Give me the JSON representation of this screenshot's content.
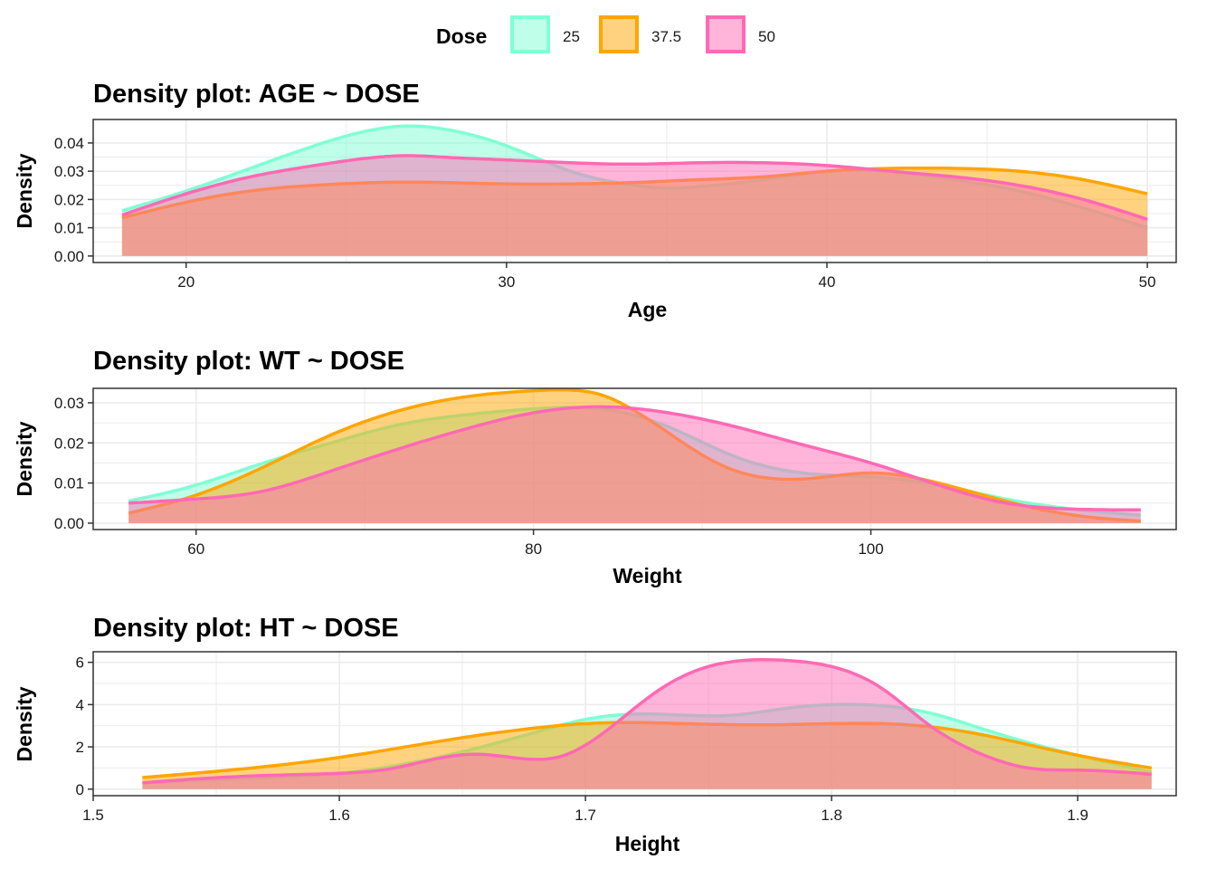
{
  "legend": {
    "title": "Dose",
    "entries": [
      {
        "label": "25",
        "fill": "#7FFFD4",
        "stroke": "#7FFFD4"
      },
      {
        "label": "37.5",
        "fill": "#FFA500",
        "stroke": "#FFA500"
      },
      {
        "label": "50",
        "fill": "#FF69B4",
        "stroke": "#FF69B4"
      }
    ]
  },
  "colors": {
    "25": "#7FFFD4",
    "37.5": "#FFA500",
    "50": "#FF69B4",
    "gridline": "#EBEBEB",
    "panel_border": "#333333"
  },
  "chart_data": [
    {
      "type": "area",
      "title": "Density plot: AGE ~ DOSE",
      "xlabel": "Age",
      "ylabel": "Density",
      "xlim": [
        17.1,
        50.9
      ],
      "ylim": [
        -0.0023,
        0.0483
      ],
      "xticks": [
        20,
        30,
        40,
        50
      ],
      "xtick_labels": [
        "20",
        "30",
        "40",
        "50"
      ],
      "yticks": [
        0,
        0.01,
        0.02,
        0.03,
        0.04
      ],
      "ytick_labels": [
        "0.00",
        "0.01",
        "0.02",
        "0.03",
        "0.04"
      ],
      "grid": true,
      "series": [
        {
          "name": "25",
          "x": [
            18,
            20,
            22,
            24,
            26,
            27,
            28,
            30,
            32,
            34,
            35,
            36,
            38,
            40,
            42,
            44,
            46,
            48,
            50
          ],
          "y": [
            0.016,
            0.023,
            0.031,
            0.039,
            0.045,
            0.046,
            0.045,
            0.039,
            0.03,
            0.025,
            0.024,
            0.0245,
            0.027,
            0.03,
            0.03,
            0.027,
            0.023,
            0.017,
            0.01
          ]
        },
        {
          "name": "37.5",
          "x": [
            18,
            20,
            22,
            24,
            26,
            28,
            30,
            32,
            34,
            36,
            38,
            40,
            42,
            44,
            46,
            48,
            50
          ],
          "y": [
            0.0135,
            0.019,
            0.023,
            0.025,
            0.026,
            0.026,
            0.0255,
            0.0255,
            0.026,
            0.027,
            0.028,
            0.03,
            0.031,
            0.031,
            0.03,
            0.027,
            0.022
          ]
        },
        {
          "name": "50",
          "x": [
            18,
            20,
            22,
            24,
            26,
            27,
            28,
            30,
            32,
            34,
            36,
            38,
            40,
            42,
            44,
            46,
            48,
            50
          ],
          "y": [
            0.0145,
            0.022,
            0.028,
            0.032,
            0.035,
            0.0355,
            0.035,
            0.034,
            0.033,
            0.0325,
            0.033,
            0.033,
            0.032,
            0.03,
            0.028,
            0.025,
            0.02,
            0.013
          ]
        }
      ]
    },
    {
      "type": "area",
      "title": "Density plot: WT ~ DOSE",
      "xlabel": "Weight",
      "ylabel": "Density",
      "xlim": [
        53.9,
        118.1
      ],
      "ylim": [
        -0.0016,
        0.0336
      ],
      "xticks": [
        60,
        80,
        100
      ],
      "xtick_labels": [
        "60",
        "80",
        "100"
      ],
      "yticks": [
        0,
        0.01,
        0.02,
        0.03
      ],
      "ytick_labels": [
        "0.00",
        "0.01",
        "0.02",
        "0.03"
      ],
      "grid": true,
      "series": [
        {
          "name": "25",
          "x": [
            56,
            60,
            64,
            68,
            72,
            76,
            80,
            84,
            88,
            92,
            96,
            100,
            104,
            108,
            112,
            116
          ],
          "y": [
            0.0055,
            0.0095,
            0.015,
            0.02,
            0.0245,
            0.027,
            0.0285,
            0.0285,
            0.024,
            0.0165,
            0.0125,
            0.0115,
            0.0095,
            0.006,
            0.0035,
            0.002
          ]
        },
        {
          "name": "37.5",
          "x": [
            56,
            60,
            64,
            68,
            72,
            76,
            80,
            82,
            84,
            86,
            88,
            90,
            92,
            94,
            96,
            100,
            104,
            108,
            112,
            116
          ],
          "y": [
            0.0025,
            0.007,
            0.014,
            0.022,
            0.028,
            0.0315,
            0.033,
            0.0332,
            0.032,
            0.028,
            0.0225,
            0.017,
            0.013,
            0.0112,
            0.011,
            0.0125,
            0.01,
            0.0055,
            0.002,
            0.0005
          ]
        },
        {
          "name": "50",
          "x": [
            56,
            60,
            64,
            68,
            72,
            76,
            80,
            84,
            88,
            92,
            96,
            100,
            104,
            108,
            112,
            116
          ],
          "y": [
            0.005,
            0.006,
            0.008,
            0.013,
            0.0185,
            0.0235,
            0.0275,
            0.029,
            0.0275,
            0.024,
            0.0195,
            0.015,
            0.0095,
            0.005,
            0.0035,
            0.0033
          ]
        }
      ]
    },
    {
      "type": "area",
      "title": "Density plot: HT ~ DOSE",
      "xlabel": "Height",
      "ylabel": "Density",
      "xlim": [
        1.5,
        1.94
      ],
      "ylim": [
        -0.31,
        6.5
      ],
      "xticks": [
        1.5,
        1.6,
        1.7,
        1.8,
        1.9
      ],
      "xtick_labels": [
        "1.5",
        "1.6",
        "1.7",
        "1.8",
        "1.9"
      ],
      "yticks": [
        0,
        2,
        4,
        6
      ],
      "ytick_labels": [
        "0",
        "2",
        "4",
        "6"
      ],
      "grid": true,
      "series": [
        {
          "name": "25",
          "x": [
            1.52,
            1.56,
            1.6,
            1.64,
            1.68,
            1.7,
            1.72,
            1.74,
            1.76,
            1.78,
            1.8,
            1.82,
            1.84,
            1.86,
            1.88,
            1.9,
            1.93
          ],
          "y": [
            0.3,
            0.5,
            0.75,
            1.5,
            2.7,
            3.3,
            3.55,
            3.5,
            3.5,
            3.8,
            4.0,
            3.95,
            3.6,
            2.9,
            2.2,
            1.6,
            0.8
          ]
        },
        {
          "name": "37.5",
          "x": [
            1.52,
            1.56,
            1.6,
            1.64,
            1.68,
            1.7,
            1.72,
            1.74,
            1.76,
            1.78,
            1.8,
            1.82,
            1.84,
            1.86,
            1.88,
            1.9,
            1.93
          ],
          "y": [
            0.55,
            0.95,
            1.5,
            2.25,
            2.9,
            3.1,
            3.15,
            3.1,
            3.05,
            3.05,
            3.1,
            3.1,
            2.95,
            2.6,
            2.1,
            1.6,
            1.0
          ]
        },
        {
          "name": "50",
          "x": [
            1.52,
            1.56,
            1.6,
            1.62,
            1.64,
            1.655,
            1.67,
            1.69,
            1.71,
            1.73,
            1.75,
            1.78,
            1.8,
            1.82,
            1.84,
            1.86,
            1.88,
            1.9,
            1.93
          ],
          "y": [
            0.3,
            0.6,
            0.75,
            0.95,
            1.45,
            1.65,
            1.5,
            1.55,
            2.9,
            4.7,
            5.8,
            6.1,
            5.8,
            4.8,
            3.0,
            1.7,
            1.0,
            0.9,
            0.7
          ]
        }
      ]
    }
  ]
}
